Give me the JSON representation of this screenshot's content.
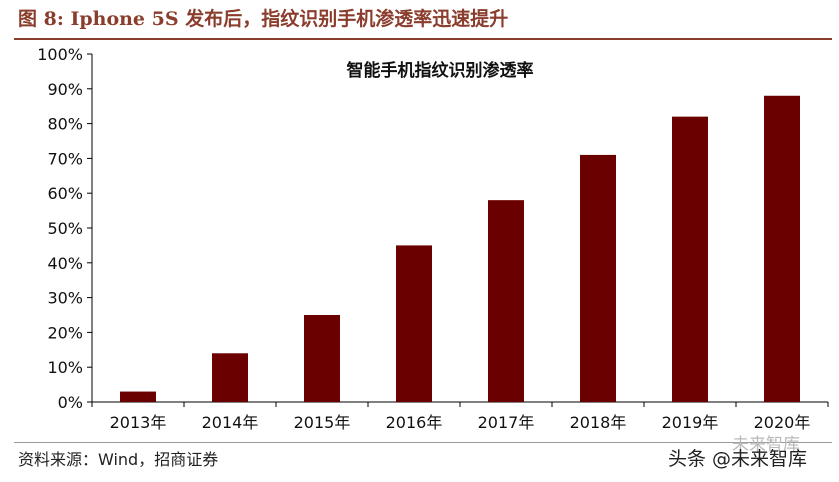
{
  "figure": {
    "title": "图 8:   Iphone 5S 发布后，指纹识别手机渗透率迅速提升",
    "source": "资料来源：Wind，招商证券",
    "watermark": "头条 @未来智库",
    "watermark_ghost": "未来智库"
  },
  "colors": {
    "bar": "#6b0000",
    "title": "#8a3d2c",
    "axis": "#000000"
  },
  "chart_data": {
    "type": "bar",
    "title": "智能手机指纹识别渗透率",
    "xlabel": "",
    "ylabel": "",
    "categories": [
      "2013年",
      "2014年",
      "2015年",
      "2016年",
      "2017年",
      "2018年",
      "2019年",
      "2020年"
    ],
    "values": [
      3,
      14,
      25,
      45,
      58,
      71,
      82,
      88
    ],
    "ylim": [
      0,
      100
    ],
    "yticks": [
      "0%",
      "10%",
      "20%",
      "30%",
      "40%",
      "50%",
      "60%",
      "70%",
      "80%",
      "90%",
      "100%"
    ],
    "grid": false,
    "legend": "none"
  }
}
